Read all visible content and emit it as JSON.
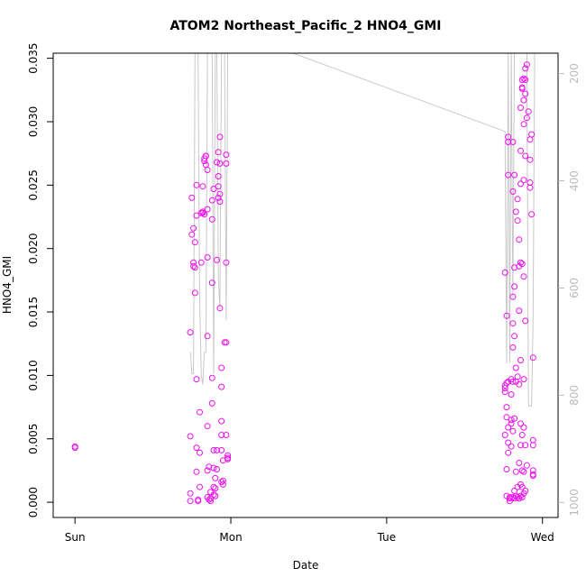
{
  "chart_data": {
    "type": "scatter",
    "title": "ATOM2 Northeast_Pacific_2 HNO4_GMI",
    "xlabel": "Date",
    "ylabel": "HNO4_GMI",
    "x_ticks": [
      "Sun",
      "Mon",
      "Tue",
      "Wed"
    ],
    "x_range_days": [
      -0.14,
      3.1
    ],
    "ylim": [
      -0.0012,
      0.0354
    ],
    "y_ticks": [
      "0.000",
      "0.005",
      "0.010",
      "0.015",
      "0.020",
      "0.025",
      "0.030",
      "0.035"
    ],
    "y2_ticks": [
      "200",
      "400",
      "600",
      "800",
      "1000"
    ],
    "y2_range": [
      1028,
      162
    ],
    "grid": false,
    "colors": {
      "points": "#ee10ee",
      "pressure_line": "#c8c8c8",
      "right_axis": "#bbbbbb"
    },
    "series": [
      {
        "points": [
          [
            0.0,
            0.0044
          ],
          [
            0.0,
            0.0043
          ],
          [
            0.74,
            0.0134
          ],
          [
            0.74,
            0.0052
          ],
          [
            0.74,
            0.0007
          ],
          [
            0.74,
            0.0001
          ],
          [
            0.75,
            0.024
          ],
          [
            0.75,
            0.0211
          ],
          [
            0.76,
            0.0216
          ],
          [
            0.76,
            0.0189
          ],
          [
            0.76,
            0.0186
          ],
          [
            0.77,
            0.0185
          ],
          [
            0.77,
            0.0205
          ],
          [
            0.77,
            0.0165
          ],
          [
            0.78,
            0.025
          ],
          [
            0.78,
            0.0226
          ],
          [
            0.78,
            0.0097
          ],
          [
            0.78,
            0.0043
          ],
          [
            0.78,
            0.0024
          ],
          [
            0.79,
            0.0002
          ],
          [
            0.79,
            0.0001
          ],
          [
            0.8,
            0.0039
          ],
          [
            0.8,
            0.0012
          ],
          [
            0.8,
            0.0071
          ],
          [
            0.81,
            0.0228
          ],
          [
            0.81,
            0.0189
          ],
          [
            0.82,
            0.0228
          ],
          [
            0.82,
            0.0249
          ],
          [
            0.82,
            0.0229
          ],
          [
            0.83,
            0.0269
          ],
          [
            0.83,
            0.0271
          ],
          [
            0.83,
            0.0227
          ],
          [
            0.84,
            0.0273
          ],
          [
            0.84,
            0.0266
          ],
          [
            0.84,
            0.0273
          ],
          [
            0.85,
            0.0262
          ],
          [
            0.85,
            0.0231
          ],
          [
            0.85,
            0.0193
          ],
          [
            0.85,
            0.0131
          ],
          [
            0.85,
            0.006
          ],
          [
            0.85,
            0.0025
          ],
          [
            0.85,
            0.0004
          ],
          [
            0.86,
            0.0002
          ],
          [
            0.86,
            0.0028
          ],
          [
            0.87,
            0.0008
          ],
          [
            0.87,
            0.0003
          ],
          [
            0.87,
            0.0001
          ],
          [
            0.88,
            0.0223
          ],
          [
            0.88,
            0.0238
          ],
          [
            0.88,
            0.0173
          ],
          [
            0.88,
            0.0078
          ],
          [
            0.88,
            0.0098
          ],
          [
            0.89,
            0.0247
          ],
          [
            0.89,
            0.0041
          ],
          [
            0.89,
            0.0012
          ],
          [
            0.89,
            0.0006
          ],
          [
            0.89,
            0.0027
          ],
          [
            0.9,
            0.0005
          ],
          [
            0.9,
            0.0011
          ],
          [
            0.9,
            0.0019
          ],
          [
            0.91,
            0.0026
          ],
          [
            0.91,
            0.0041
          ],
          [
            0.91,
            0.0191
          ],
          [
            0.91,
            0.0268
          ],
          [
            0.92,
            0.0276
          ],
          [
            0.92,
            0.0249
          ],
          [
            0.92,
            0.024
          ],
          [
            0.92,
            0.0257
          ],
          [
            0.93,
            0.0267
          ],
          [
            0.93,
            0.0288
          ],
          [
            0.93,
            0.0243
          ],
          [
            0.93,
            0.0237
          ],
          [
            0.93,
            0.0153
          ],
          [
            0.94,
            0.0106
          ],
          [
            0.94,
            0.0091
          ],
          [
            0.94,
            0.0064
          ],
          [
            0.94,
            0.0053
          ],
          [
            0.94,
            0.0041
          ],
          [
            0.94,
            0.0016
          ],
          [
            0.95,
            0.0017
          ],
          [
            0.95,
            0.0014
          ],
          [
            0.95,
            0.0033
          ],
          [
            0.96,
            0.0126
          ],
          [
            0.97,
            0.0126
          ],
          [
            0.97,
            0.0267
          ],
          [
            0.97,
            0.0274
          ],
          [
            0.97,
            0.0189
          ],
          [
            0.97,
            0.0053
          ],
          [
            0.98,
            0.0037
          ],
          [
            0.98,
            0.0034
          ],
          [
            0.98,
            0.0035
          ],
          [
            2.76,
            0.0181
          ],
          [
            2.76,
            0.0087
          ],
          [
            2.76,
            0.009
          ],
          [
            2.76,
            0.0092
          ],
          [
            2.76,
            0.0053
          ],
          [
            2.77,
            0.0147
          ],
          [
            2.77,
            0.0094
          ],
          [
            2.77,
            0.0075
          ],
          [
            2.77,
            0.0067
          ],
          [
            2.77,
            0.0026
          ],
          [
            2.77,
            0.0005
          ],
          [
            2.78,
            0.0284
          ],
          [
            2.78,
            0.0288
          ],
          [
            2.78,
            0.0258
          ],
          [
            2.78,
            0.0095
          ],
          [
            2.78,
            0.0059
          ],
          [
            2.78,
            0.0047
          ],
          [
            2.78,
            0.0039
          ],
          [
            2.79,
            0.0004
          ],
          [
            2.79,
            0.0003
          ],
          [
            2.79,
            0.0001
          ],
          [
            2.8,
            0.0085
          ],
          [
            2.8,
            0.0097
          ],
          [
            2.8,
            0.0062
          ],
          [
            2.8,
            0.0065
          ],
          [
            2.8,
            0.0044
          ],
          [
            2.81,
            0.0284
          ],
          [
            2.81,
            0.0245
          ],
          [
            2.81,
            0.0162
          ],
          [
            2.81,
            0.0141
          ],
          [
            2.81,
            0.0122
          ],
          [
            2.81,
            0.0095
          ],
          [
            2.81,
            0.0056
          ],
          [
            2.81,
            0.0004
          ],
          [
            2.82,
            0.0258
          ],
          [
            2.82,
            0.017
          ],
          [
            2.82,
            0.0185
          ],
          [
            2.82,
            0.0131
          ],
          [
            2.82,
            0.0066
          ],
          [
            2.82,
            0.0009
          ],
          [
            2.82,
            0.0003
          ],
          [
            2.83,
            0.0229
          ],
          [
            2.83,
            0.0106
          ],
          [
            2.83,
            0.0095
          ],
          [
            2.83,
            0.0024
          ],
          [
            2.83,
            0.0005
          ],
          [
            2.84,
            0.0222
          ],
          [
            2.84,
            0.0239
          ],
          [
            2.84,
            0.0099
          ],
          [
            2.84,
            0.0012
          ],
          [
            2.84,
            0.0004
          ],
          [
            2.85,
            0.0207
          ],
          [
            2.85,
            0.0186
          ],
          [
            2.85,
            0.0151
          ],
          [
            2.85,
            0.0093
          ],
          [
            2.85,
            0.0031
          ],
          [
            2.85,
            0.0003
          ],
          [
            2.86,
            0.0311
          ],
          [
            2.86,
            0.0277
          ],
          [
            2.86,
            0.0251
          ],
          [
            2.86,
            0.0189
          ],
          [
            2.86,
            0.0112
          ],
          [
            2.86,
            0.0062
          ],
          [
            2.86,
            0.0045
          ],
          [
            2.86,
            0.0014
          ],
          [
            2.86,
            0.0005
          ],
          [
            2.87,
            0.0327
          ],
          [
            2.87,
            0.0333
          ],
          [
            2.87,
            0.0326
          ],
          [
            2.87,
            0.0188
          ],
          [
            2.87,
            0.0053
          ],
          [
            2.87,
            0.0025
          ],
          [
            2.87,
            0.0012
          ],
          [
            2.87,
            0.0004
          ],
          [
            2.88,
            0.0334
          ],
          [
            2.88,
            0.0317
          ],
          [
            2.88,
            0.0298
          ],
          [
            2.88,
            0.0254
          ],
          [
            2.88,
            0.0178
          ],
          [
            2.88,
            0.0097
          ],
          [
            2.88,
            0.0059
          ],
          [
            2.88,
            0.0024
          ],
          [
            2.88,
            0.0007
          ],
          [
            2.89,
            0.0342
          ],
          [
            2.89,
            0.0333
          ],
          [
            2.89,
            0.0322
          ],
          [
            2.89,
            0.0273
          ],
          [
            2.89,
            0.0143
          ],
          [
            2.89,
            0.0045
          ],
          [
            2.89,
            0.0009
          ],
          [
            2.9,
            0.0345
          ],
          [
            2.9,
            0.0303
          ],
          [
            2.9,
            0.0029
          ],
          [
            2.91,
            0.0308
          ],
          [
            2.92,
            0.027
          ],
          [
            2.92,
            0.0286
          ],
          [
            2.92,
            0.0252
          ],
          [
            2.92,
            0.0248
          ],
          [
            2.93,
            0.0227
          ],
          [
            2.93,
            0.029
          ],
          [
            2.94,
            0.0114
          ],
          [
            2.94,
            0.0049
          ],
          [
            2.94,
            0.0045
          ],
          [
            2.94,
            0.0025
          ],
          [
            2.94,
            0.0021
          ],
          [
            2.94,
            0.0022
          ]
        ]
      },
      {
        "axis": "right",
        "style": "line",
        "values": [
          [
            0.74,
            720
          ],
          [
            0.75,
            760
          ],
          [
            0.76,
            760
          ],
          [
            0.77,
            162
          ],
          [
            0.78,
            162
          ],
          [
            0.79,
            162
          ],
          [
            0.8,
            620
          ],
          [
            0.81,
            760
          ],
          [
            0.82,
            780
          ],
          [
            0.83,
            720
          ],
          [
            0.84,
            720
          ],
          [
            0.85,
            162
          ],
          [
            0.86,
            162
          ],
          [
            0.87,
            162
          ],
          [
            0.88,
            162
          ],
          [
            0.89,
            760
          ],
          [
            0.9,
            162
          ],
          [
            0.91,
            162
          ],
          [
            0.92,
            580
          ],
          [
            0.93,
            640
          ],
          [
            0.94,
            162
          ],
          [
            0.95,
            162
          ],
          [
            0.96,
            162
          ],
          [
            0.97,
            660
          ],
          [
            0.98,
            162
          ],
          [
            1.4,
            162
          ],
          [
            2.76,
            308
          ],
          [
            2.77,
            740
          ],
          [
            2.78,
            162
          ],
          [
            2.79,
            740
          ],
          [
            2.8,
            162
          ],
          [
            2.81,
            620
          ],
          [
            2.82,
            162
          ],
          [
            2.83,
            162
          ],
          [
            2.84,
            162
          ],
          [
            2.85,
            162
          ],
          [
            2.86,
            162
          ],
          [
            2.87,
            162
          ],
          [
            2.88,
            162
          ],
          [
            2.89,
            162
          ],
          [
            2.9,
            162
          ],
          [
            2.91,
            820
          ],
          [
            2.92,
            820
          ],
          [
            2.93,
            820
          ],
          [
            2.94,
            660
          ],
          [
            2.95,
            162
          ]
        ]
      }
    ]
  }
}
